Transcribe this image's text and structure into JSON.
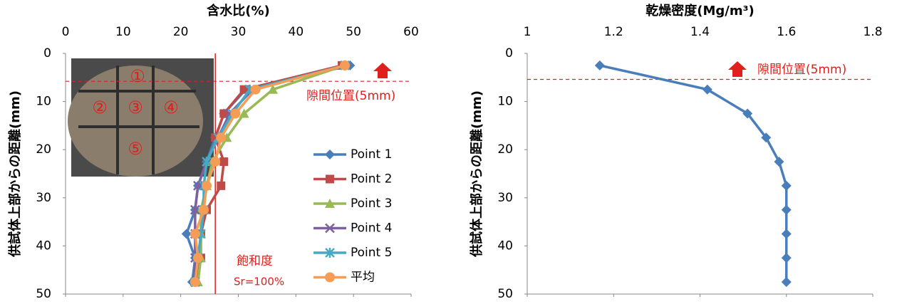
{
  "chart_data": [
    {
      "type": "line",
      "x_title": "含水比(%)",
      "y_title": "供試体上部からの距離(mm)",
      "xlim": [
        0,
        60
      ],
      "xticks": [
        0,
        10,
        20,
        30,
        40,
        50,
        60
      ],
      "ylim": [
        0,
        50
      ],
      "yticks": [
        0,
        10,
        20,
        30,
        40,
        50
      ],
      "y_reversed": true,
      "y": [
        2.5,
        7.5,
        12.5,
        17.5,
        22.5,
        27.5,
        32.5,
        37.5,
        42.5,
        47.5
      ],
      "series": [
        {
          "name": "Point 1",
          "color": "#4a7ebb",
          "marker": "diamond",
          "values": [
            49.4,
            31.3,
            27.5,
            26,
            24.5,
            23,
            22.5,
            21,
            22.5,
            22
          ]
        },
        {
          "name": "Point 2",
          "color": "#be4b48",
          "marker": "square",
          "values": [
            48,
            31,
            27.5,
            26,
            27.5,
            27,
            24.5,
            23.5,
            23.5,
            22.5
          ]
        },
        {
          "name": "Point 3",
          "color": "#98b954",
          "marker": "triangle",
          "values": [
            48.5,
            36,
            31,
            28,
            25.5,
            24.5,
            23.5,
            23.5,
            23.5,
            23
          ]
        },
        {
          "name": "Point 4",
          "color": "#7d60a0",
          "marker": "x",
          "values": [
            48.5,
            32.5,
            28.5,
            26.5,
            24.5,
            23,
            22.5,
            22.5,
            22.5,
            22.5
          ]
        },
        {
          "name": "Point 5",
          "color": "#46aac5",
          "marker": "star",
          "values": [
            48.5,
            32,
            29,
            26.5,
            24.5,
            24,
            24,
            23.5,
            23,
            22.5
          ]
        },
        {
          "name": "平均",
          "color": "#f59d56",
          "marker": "circle",
          "values": [
            48.5,
            33,
            29.5,
            27,
            26,
            24.5,
            24,
            22.5,
            23,
            22.5
          ]
        }
      ],
      "gap_y": 5.8,
      "gap_label": "隙間位置(5mm)",
      "sat_x": 26,
      "sat_labels": [
        "飽和度",
        "Sr=100%"
      ],
      "photo_labels": [
        "①",
        "②",
        "③",
        "④",
        "⑤"
      ]
    },
    {
      "type": "line",
      "x_title": "乾燥密度(Mg/m³)",
      "y_title": "供試体上部からの距離(mm)",
      "xlim": [
        1,
        1.8
      ],
      "xticks": [
        1,
        1.2,
        1.4,
        1.6,
        1.8
      ],
      "ylim": [
        0,
        50
      ],
      "yticks": [
        0,
        10,
        20,
        30,
        40,
        50
      ],
      "y_reversed": true,
      "y": [
        2.5,
        7.5,
        12.5,
        17.5,
        22.5,
        27.5,
        32.5,
        37.5,
        42.5,
        47.5
      ],
      "series": [
        {
          "color": "#4a7ebb",
          "marker": "diamond",
          "values": [
            1.168,
            1.417,
            1.51,
            1.553,
            1.583,
            1.6,
            1.6,
            1.6,
            1.6,
            1.6
          ]
        }
      ],
      "gap_y": 5.4,
      "gap_label": "隙間位置(5mm)"
    }
  ]
}
